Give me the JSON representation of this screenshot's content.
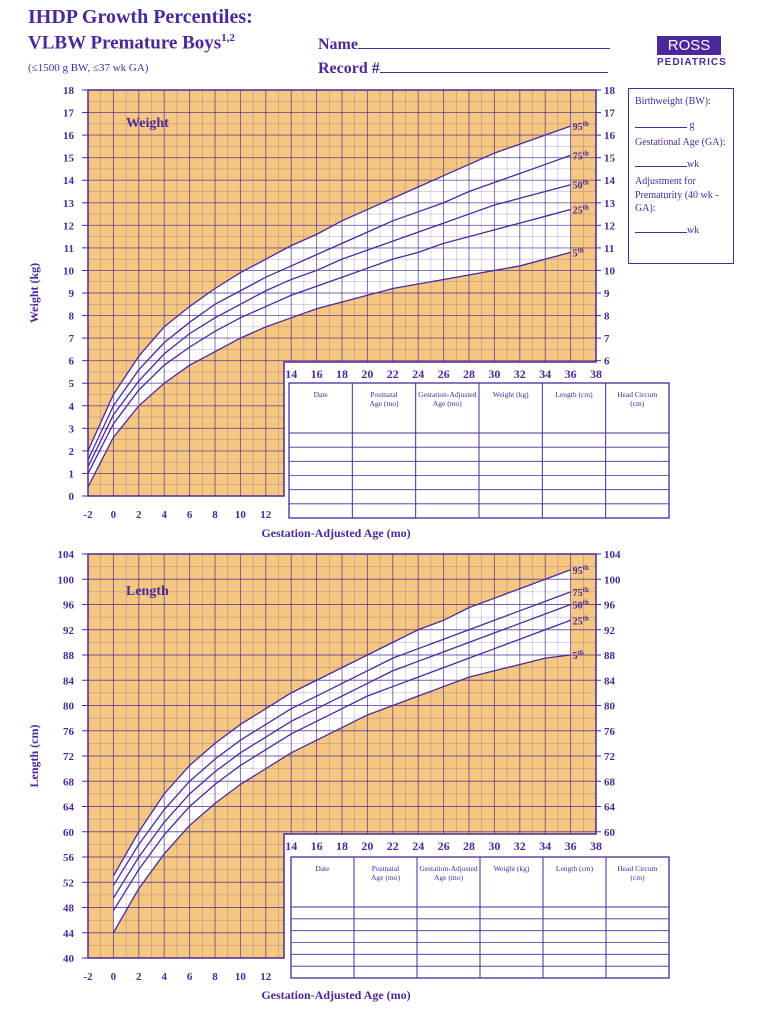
{
  "header": {
    "title": "IHDP Growth Percentiles:",
    "subtitle_main": "VLBW Premature Boys",
    "subtitle_sup": "1,2",
    "criteria": "(≤1500 g BW, ≤37 wk GA)",
    "name_label": "Name",
    "record_label": "Record #"
  },
  "logo": {
    "brand": "ROSS",
    "sub": "PEDIATRICS"
  },
  "sidebox": {
    "birthweight_label": "Birthweight (BW):",
    "birthweight_unit": "g",
    "ga_label": "Gestational Age (GA):",
    "ga_unit": "wk",
    "adjust_label": "Adjustment for Prematurity (40 wk - GA):",
    "adjust_unit": "wk"
  },
  "colors": {
    "grid_bg": "#f5c780",
    "ink": "#4a2a9a",
    "band": "#ffffff"
  },
  "record_table": {
    "headers": [
      "Date",
      "Postnatal Age (mo)",
      "Gestation-Adjusted Age (mo)",
      "Weight (kg)",
      "Length (cm)",
      "Head Circum (cm)"
    ],
    "rows": 6
  },
  "chart_data": [
    {
      "type": "line",
      "title": "Weight",
      "xlabel": "Gestation-Adjusted Age (mo)",
      "ylabel": "Weight (kg)",
      "xlim": [
        -2,
        38
      ],
      "ylim": [
        0,
        18
      ],
      "x_ticks_lower": [
        -2,
        0,
        2,
        4,
        6,
        8,
        10,
        12
      ],
      "x_ticks_upper": [
        14,
        16,
        18,
        20,
        22,
        24,
        26,
        28,
        30,
        32,
        34,
        36,
        38
      ],
      "y_ticks_left": [
        0,
        1,
        2,
        3,
        4,
        5,
        6,
        7,
        8,
        9,
        10,
        11,
        12,
        13,
        14,
        15,
        16,
        17,
        18
      ],
      "y_ticks_right": [
        6,
        7,
        8,
        9,
        10,
        11,
        12,
        13,
        14,
        15,
        16,
        17,
        18
      ],
      "x": [
        -2,
        0,
        2,
        4,
        6,
        8,
        10,
        12,
        14,
        16,
        18,
        20,
        22,
        24,
        26,
        28,
        30,
        32,
        34,
        36
      ],
      "series": [
        {
          "name": "95th",
          "values": [
            2.0,
            4.5,
            6.2,
            7.5,
            8.4,
            9.2,
            9.9,
            10.5,
            11.1,
            11.6,
            12.2,
            12.7,
            13.2,
            13.7,
            14.2,
            14.7,
            15.2,
            15.6,
            16.0,
            16.4
          ]
        },
        {
          "name": "75th",
          "values": [
            1.6,
            4.0,
            5.6,
            6.8,
            7.7,
            8.5,
            9.1,
            9.7,
            10.2,
            10.7,
            11.2,
            11.7,
            12.2,
            12.6,
            13.0,
            13.5,
            13.9,
            14.3,
            14.7,
            15.1
          ]
        },
        {
          "name": "50th",
          "values": [
            1.3,
            3.6,
            5.1,
            6.3,
            7.2,
            7.9,
            8.5,
            9.1,
            9.6,
            10.0,
            10.5,
            10.9,
            11.3,
            11.7,
            12.1,
            12.5,
            12.9,
            13.2,
            13.5,
            13.8
          ]
        },
        {
          "name": "25th",
          "values": [
            1.0,
            3.2,
            4.7,
            5.8,
            6.6,
            7.3,
            7.9,
            8.4,
            8.9,
            9.3,
            9.7,
            10.1,
            10.5,
            10.8,
            11.2,
            11.5,
            11.8,
            12.1,
            12.4,
            12.7
          ]
        },
        {
          "name": "5th",
          "values": [
            0.4,
            2.6,
            4.0,
            5.0,
            5.8,
            6.4,
            7.0,
            7.5,
            7.9,
            8.3,
            8.6,
            8.9,
            9.2,
            9.4,
            9.6,
            9.8,
            10.0,
            10.2,
            10.5,
            10.8
          ]
        }
      ]
    },
    {
      "type": "line",
      "title": "Length",
      "xlabel": "Gestation-Adjusted Age (mo)",
      "ylabel": "Length (cm)",
      "xlim": [
        -2,
        38
      ],
      "ylim": [
        40,
        104
      ],
      "x_ticks_lower": [
        -2,
        0,
        2,
        4,
        6,
        8,
        10,
        12
      ],
      "x_ticks_upper": [
        14,
        16,
        18,
        20,
        22,
        24,
        26,
        28,
        30,
        32,
        34,
        36,
        38
      ],
      "y_ticks_left": [
        40,
        44,
        48,
        52,
        56,
        60,
        64,
        68,
        72,
        76,
        80,
        84,
        88,
        92,
        96,
        100,
        104
      ],
      "y_ticks_right": [
        60,
        64,
        68,
        72,
        76,
        80,
        84,
        88,
        92,
        96,
        100,
        104
      ],
      "x": [
        0,
        2,
        4,
        6,
        8,
        10,
        12,
        14,
        16,
        18,
        20,
        22,
        24,
        26,
        28,
        30,
        32,
        34,
        36
      ],
      "series": [
        {
          "name": "95th",
          "values": [
            53,
            60,
            66,
            70.5,
            74,
            77,
            79.5,
            82,
            84,
            86,
            88,
            90,
            92,
            93.5,
            95.5,
            97,
            98.5,
            100,
            101.5
          ]
        },
        {
          "name": "75th",
          "values": [
            51.5,
            58,
            63.5,
            68,
            71.5,
            74.5,
            77,
            79.5,
            81.5,
            83.5,
            85.5,
            87.5,
            89,
            90.5,
            92,
            93.5,
            95,
            96.5,
            98
          ]
        },
        {
          "name": "50th",
          "values": [
            49.5,
            56,
            61.5,
            66,
            69.5,
            72.5,
            75,
            77.5,
            79.5,
            81.5,
            83.5,
            85.5,
            87,
            88.5,
            90,
            91.5,
            93,
            94.5,
            96
          ]
        },
        {
          "name": "25th",
          "values": [
            47.5,
            54,
            59.5,
            64,
            67.5,
            70.5,
            73,
            75.5,
            77.5,
            79.5,
            81.5,
            83,
            84.5,
            86,
            87.5,
            89,
            90.5,
            92,
            93.5
          ]
        },
        {
          "name": "5th",
          "values": [
            44,
            51,
            56.5,
            61,
            64.5,
            67.5,
            70,
            72.5,
            74.5,
            76.5,
            78.5,
            80,
            81.5,
            83,
            84.5,
            85.5,
            86.5,
            87.5,
            88
          ]
        }
      ]
    }
  ]
}
